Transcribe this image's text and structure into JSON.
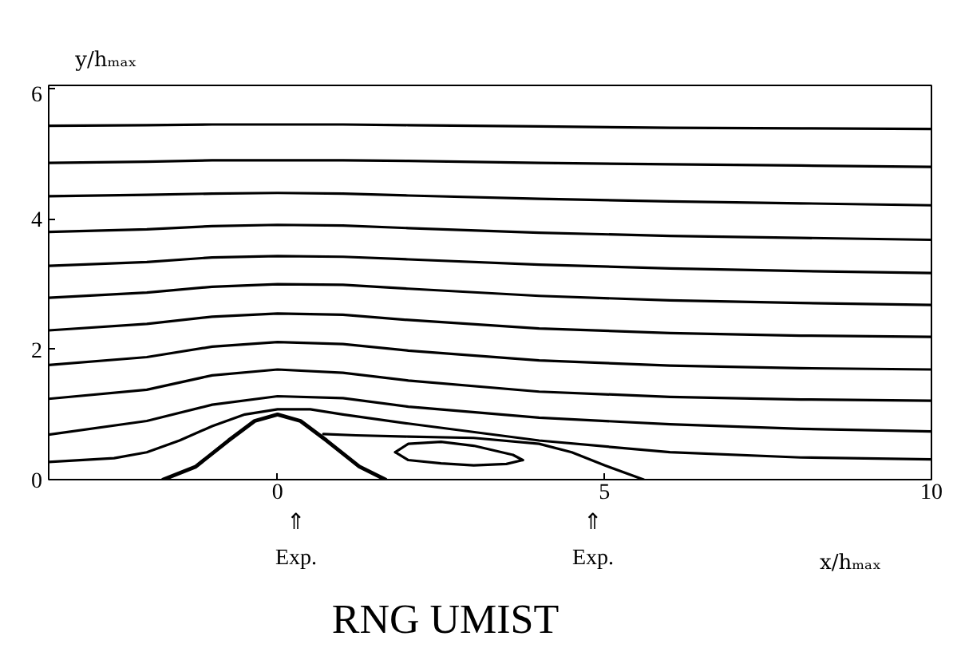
{
  "chart_data": {
    "type": "line",
    "title": "RNG   UMIST",
    "xlabel": "x/hₘₐₓ",
    "ylabel": "y/hₘₐₓ",
    "xlim": [
      -3.5,
      10
    ],
    "ylim": [
      0,
      6.05
    ],
    "xticks": [
      0,
      5,
      10
    ],
    "yticks": [
      0,
      2,
      4,
      6
    ],
    "grid": false,
    "marker": "none",
    "line_style": "solid",
    "annotations": [
      "⇑",
      "Exp.",
      "⇑",
      "Exp."
    ],
    "series": [
      {
        "color": "#000000",
        "x": [
          -3.5,
          -2,
          -1,
          0,
          1,
          2,
          4,
          6,
          8,
          10
        ],
        "values": [
          5.43,
          5.44,
          5.45,
          5.45,
          5.45,
          5.44,
          5.42,
          5.4,
          5.39,
          5.38
        ]
      },
      {
        "color": "#000000",
        "x": [
          -3.5,
          -2,
          -1,
          0,
          1,
          2,
          4,
          6,
          8,
          10
        ],
        "values": [
          4.86,
          4.88,
          4.9,
          4.9,
          4.9,
          4.89,
          4.86,
          4.84,
          4.82,
          4.8
        ]
      },
      {
        "color": "#000000",
        "x": [
          -3.5,
          -2,
          -1,
          0,
          1,
          2,
          4,
          6,
          8,
          10
        ],
        "values": [
          4.35,
          4.37,
          4.39,
          4.4,
          4.39,
          4.36,
          4.31,
          4.27,
          4.24,
          4.21
        ]
      },
      {
        "color": "#000000",
        "x": [
          -3.5,
          -2,
          -1,
          0,
          1,
          2,
          4,
          6,
          8,
          10
        ],
        "values": [
          3.8,
          3.84,
          3.89,
          3.91,
          3.9,
          3.86,
          3.79,
          3.74,
          3.71,
          3.68
        ]
      },
      {
        "color": "#000000",
        "x": [
          -3.5,
          -2,
          -1,
          0,
          1,
          2,
          4,
          6,
          8,
          10
        ],
        "values": [
          3.28,
          3.34,
          3.41,
          3.43,
          3.42,
          3.38,
          3.3,
          3.24,
          3.2,
          3.17
        ]
      },
      {
        "color": "#000000",
        "x": [
          -3.5,
          -2,
          -1,
          0,
          1,
          2,
          4,
          6,
          8,
          10
        ],
        "values": [
          2.79,
          2.87,
          2.96,
          3.0,
          2.99,
          2.93,
          2.82,
          2.75,
          2.71,
          2.68
        ]
      },
      {
        "color": "#000000",
        "x": [
          -3.5,
          -2,
          -1,
          0,
          1,
          2,
          4,
          6,
          8,
          10
        ],
        "values": [
          2.29,
          2.39,
          2.5,
          2.55,
          2.53,
          2.45,
          2.32,
          2.25,
          2.21,
          2.19
        ]
      },
      {
        "color": "#000000",
        "x": [
          -3.5,
          -2,
          -1,
          0,
          1,
          2,
          4,
          6,
          8,
          10
        ],
        "values": [
          1.76,
          1.88,
          2.04,
          2.11,
          2.08,
          1.98,
          1.83,
          1.75,
          1.71,
          1.69
        ]
      },
      {
        "color": "#000000",
        "x": [
          -3.5,
          -2,
          -1,
          0,
          1,
          2,
          4,
          6,
          8,
          10
        ],
        "values": [
          1.24,
          1.38,
          1.6,
          1.69,
          1.64,
          1.52,
          1.35,
          1.27,
          1.23,
          1.21
        ]
      },
      {
        "color": "#000000",
        "x": [
          -3.5,
          -2,
          -1,
          0,
          1,
          2,
          4,
          6,
          8,
          10
        ],
        "values": [
          0.69,
          0.9,
          1.15,
          1.28,
          1.25,
          1.12,
          0.95,
          0.85,
          0.78,
          0.74
        ]
      },
      {
        "color": "#000000",
        "x": [
          -3.5,
          -2.5,
          -2,
          -1.5,
          -1,
          -0.5,
          0,
          0.5,
          1,
          2,
          4,
          6,
          8,
          10
        ],
        "values": [
          0.27,
          0.33,
          0.42,
          0.6,
          0.82,
          1.0,
          1.08,
          1.08,
          1.0,
          0.86,
          0.6,
          0.42,
          0.34,
          0.31
        ]
      },
      {
        "color": "#000000",
        "x": [
          0.7,
          1.2,
          2,
          3,
          4,
          4.5,
          5,
          5.6
        ],
        "values": [
          0.7,
          0.68,
          0.66,
          0.64,
          0.55,
          0.42,
          0.22,
          0
        ]
      },
      {
        "color": "#000000",
        "x": [
          1.8,
          2.0,
          2.5,
          3.0,
          3.6,
          3.75
        ],
        "values": [
          0.42,
          0.55,
          0.58,
          0.52,
          0.38,
          0.3
        ]
      },
      {
        "color": "#000000",
        "x": [
          1.8,
          2.0,
          2.5,
          3.0,
          3.5,
          3.75
        ],
        "values": [
          0.42,
          0.3,
          0.25,
          0.22,
          0.24,
          0.3
        ]
      },
      {
        "color": "#000000",
        "x": [
          -1.75,
          -1.25,
          -0.75,
          -0.35,
          0,
          0.35,
          0.75,
          1.25,
          1.65
        ],
        "values": [
          0,
          0.2,
          0.6,
          0.9,
          1.0,
          0.9,
          0.6,
          0.2,
          0
        ]
      }
    ]
  }
}
